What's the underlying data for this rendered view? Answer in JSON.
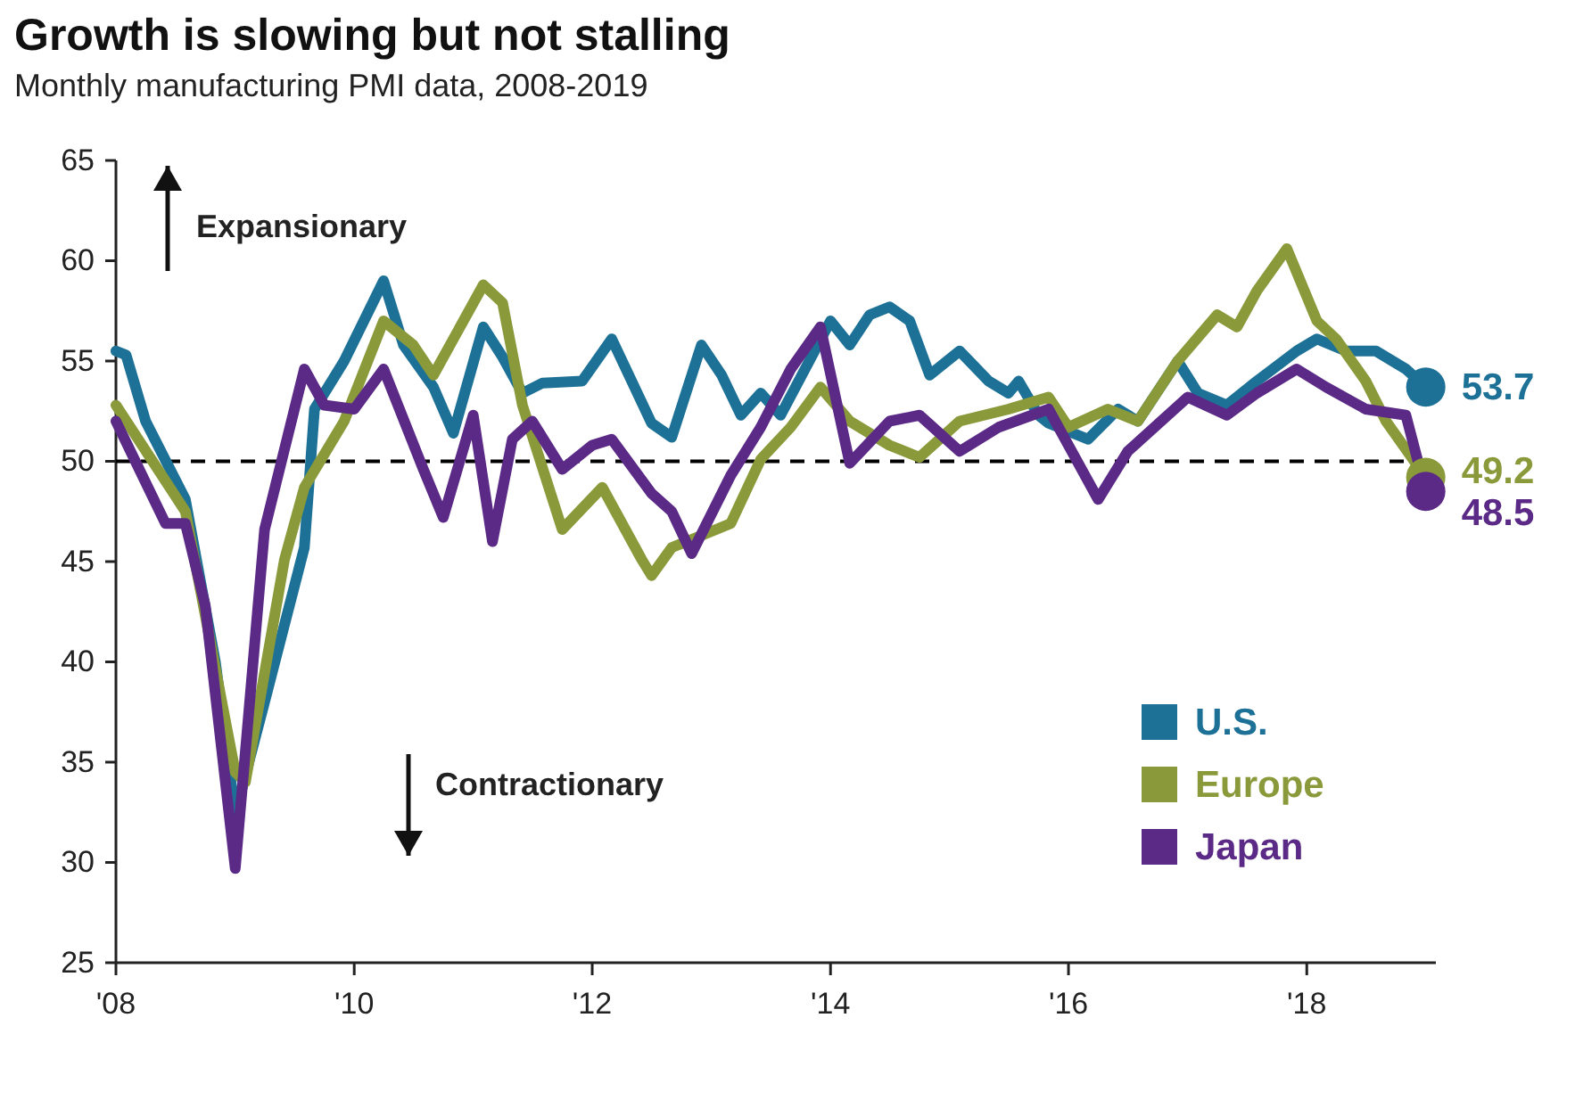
{
  "chart_data": {
    "type": "line",
    "title": "Growth is slowing but not stalling",
    "subtitle": "Monthly manufacturing PMI data, 2008-2019",
    "annotations": [
      "Expansionary",
      "Contractionary"
    ],
    "xlim": [
      "2008-01",
      "2019-02"
    ],
    "xticks": [
      {
        "value": "2008-01",
        "label": "'08"
      },
      {
        "value": "2010-01",
        "label": "'10"
      },
      {
        "value": "2012-01",
        "label": "'12"
      },
      {
        "value": "2014-01",
        "label": "'14"
      },
      {
        "value": "2016-01",
        "label": "'16"
      },
      {
        "value": "2018-01",
        "label": "'18"
      }
    ],
    "ylim": [
      25,
      65
    ],
    "yticks": [
      25,
      30,
      35,
      40,
      45,
      50,
      55,
      60,
      65
    ],
    "grid": false,
    "legend": "bottom right",
    "line_style": "solid",
    "ref_lines": [
      {
        "axis": "y",
        "value": 50,
        "label": null,
        "color": "#000000",
        "line_style": "dashed"
      }
    ],
    "series": [
      {
        "name": "U.S.",
        "color": "#1d7196",
        "x": [
          "2008-01",
          "2008-02",
          "2008-04",
          "2008-08",
          "2008-11",
          "2009-01",
          "2009-04",
          "2009-08",
          "2009-09",
          "2009-12",
          "2010-04",
          "2010-06",
          "2010-09",
          "2010-11",
          "2011-02",
          "2011-04",
          "2011-06",
          "2011-08",
          "2011-12",
          "2012-03",
          "2012-07",
          "2012-09",
          "2012-12",
          "2013-02",
          "2013-04",
          "2013-06",
          "2013-08",
          "2014-01",
          "2014-03",
          "2014-05",
          "2014-07",
          "2014-09",
          "2014-11",
          "2015-02",
          "2015-05",
          "2015-07",
          "2015-08",
          "2015-10",
          "2015-11",
          "2016-03",
          "2016-06",
          "2016-08",
          "2016-12",
          "2017-02",
          "2017-05",
          "2017-08",
          "2017-12",
          "2018-02",
          "2018-05",
          "2018-08",
          "2018-11",
          "2019-01"
        ],
        "values": [
          55.5,
          55.3,
          52,
          48.1,
          40,
          32.4,
          38,
          45.7,
          52.6,
          55,
          59,
          55.8,
          53.7,
          51.4,
          56.7,
          55.2,
          53.4,
          53.9,
          54,
          56.1,
          51.9,
          51.2,
          55.8,
          54.3,
          52.3,
          53.4,
          52.3,
          57,
          55.8,
          57.3,
          57.7,
          57,
          54.3,
          55.5,
          54,
          53.4,
          54,
          52.3,
          51.9,
          51.1,
          52.6,
          52,
          55,
          53.4,
          52.8,
          54,
          55.5,
          56.1,
          55.5,
          55.5,
          54.6,
          53.7
        ],
        "value_labels": [
          null,
          null,
          null,
          null,
          null,
          null,
          null,
          null,
          null,
          null,
          null,
          null,
          null,
          null,
          null,
          null,
          null,
          null,
          null,
          null,
          null,
          null,
          null,
          null,
          null,
          null,
          null,
          null,
          null,
          null,
          null,
          null,
          null,
          null,
          null,
          null,
          null,
          null,
          null,
          null,
          null,
          null,
          null,
          null,
          null,
          null,
          null,
          null,
          null,
          null,
          null,
          "53.7"
        ]
      },
      {
        "name": "Europe",
        "color": "#8a9a3a",
        "x": [
          "2008-01",
          "2008-08",
          "2009-01",
          "2009-02",
          "2009-06",
          "2009-08",
          "2009-12",
          "2010-04",
          "2010-07",
          "2010-09",
          "2011-02",
          "2011-04",
          "2011-06",
          "2011-10",
          "2012-02",
          "2012-06",
          "2012-07",
          "2012-09",
          "2013-03",
          "2013-06",
          "2013-09",
          "2013-12",
          "2014-03",
          "2014-07",
          "2014-10",
          "2015-02",
          "2015-07",
          "2015-11",
          "2016-01",
          "2016-05",
          "2016-08",
          "2016-12",
          "2017-04",
          "2017-06",
          "2017-08",
          "2017-11",
          "2018-02",
          "2018-04",
          "2018-07",
          "2018-09",
          "2019-01"
        ],
        "values": [
          52.8,
          47.5,
          34.5,
          34,
          45.1,
          48.7,
          52,
          57,
          55.8,
          54.3,
          58.8,
          57.9,
          52.8,
          46.6,
          48.7,
          45.1,
          44.3,
          45.7,
          46.9,
          50.1,
          51.7,
          53.7,
          52,
          50.8,
          50.2,
          52,
          52.6,
          53.2,
          51.7,
          52.6,
          52,
          55,
          57.3,
          56.7,
          58.5,
          60.6,
          57,
          56.1,
          54,
          52,
          49.2
        ],
        "value_labels": [
          null,
          null,
          null,
          null,
          null,
          null,
          null,
          null,
          null,
          null,
          null,
          null,
          null,
          null,
          null,
          null,
          null,
          null,
          null,
          null,
          null,
          null,
          null,
          null,
          null,
          null,
          null,
          null,
          null,
          null,
          null,
          null,
          null,
          null,
          null,
          null,
          null,
          null,
          null,
          null,
          "49.2"
        ]
      },
      {
        "name": "Japan",
        "color": "#5b2a86",
        "x": [
          "2008-01",
          "2008-06",
          "2008-08",
          "2008-10",
          "2009-01",
          "2009-04",
          "2009-08",
          "2009-10",
          "2010-01",
          "2010-04",
          "2010-08",
          "2010-10",
          "2011-01",
          "2011-03",
          "2011-05",
          "2011-07",
          "2011-10",
          "2012-01",
          "2012-03",
          "2012-07",
          "2012-09",
          "2012-11",
          "2013-03",
          "2013-06",
          "2013-09",
          "2013-12",
          "2014-03",
          "2014-07",
          "2014-10",
          "2015-02",
          "2015-06",
          "2015-11",
          "2016-04",
          "2016-07",
          "2017-01",
          "2017-05",
          "2017-08",
          "2017-12",
          "2018-03",
          "2018-07",
          "2018-11",
          "2019-01"
        ],
        "values": [
          52,
          46.9,
          46.9,
          42.8,
          29.7,
          46.6,
          54.6,
          52.8,
          52.6,
          54.6,
          49.6,
          47.2,
          52.3,
          46,
          51.1,
          52,
          49.6,
          50.8,
          51.1,
          48.4,
          47.5,
          45.4,
          49.3,
          51.7,
          54.6,
          56.7,
          49.9,
          52,
          52.3,
          50.5,
          51.7,
          52.6,
          48.1,
          50.5,
          53.2,
          52.3,
          53.4,
          54.6,
          53.7,
          52.6,
          52.3,
          48.5
        ],
        "value_labels": [
          null,
          null,
          null,
          null,
          null,
          null,
          null,
          null,
          null,
          null,
          null,
          null,
          null,
          null,
          null,
          null,
          null,
          null,
          null,
          null,
          null,
          null,
          null,
          null,
          null,
          null,
          null,
          null,
          null,
          null,
          null,
          null,
          null,
          null,
          null,
          null,
          null,
          null,
          null,
          null,
          null,
          "48.5"
        ]
      }
    ]
  }
}
